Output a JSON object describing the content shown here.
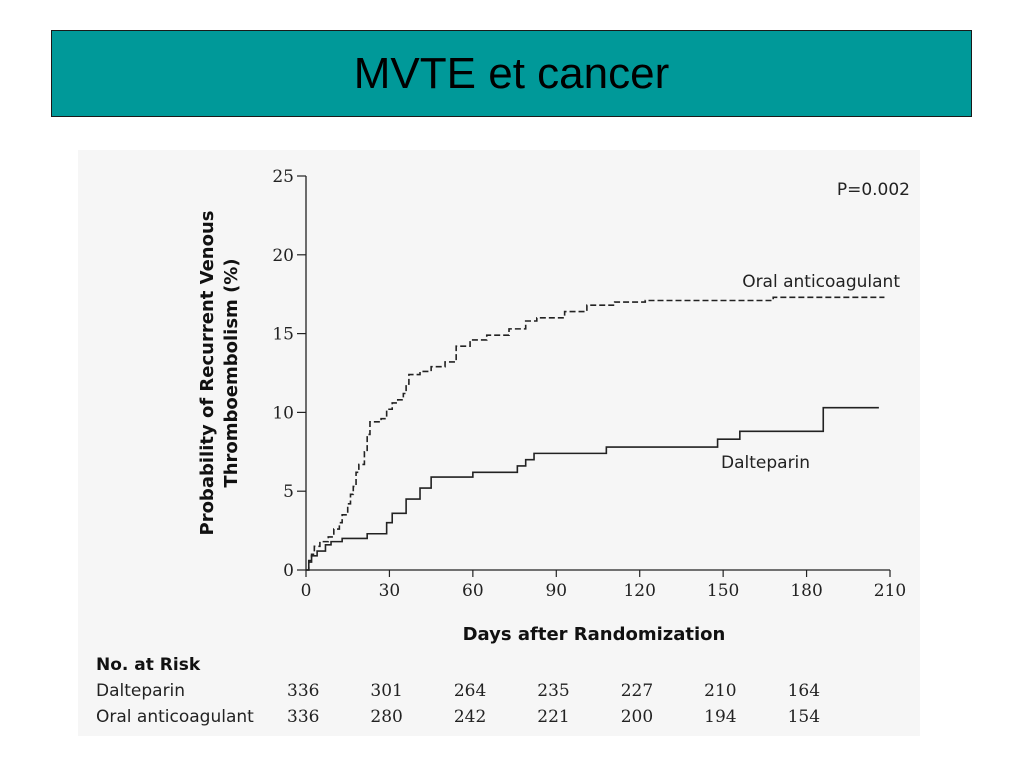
{
  "slide": {
    "title": "MVTE et cancer"
  },
  "chart_data": {
    "type": "line",
    "ylabel": "Probability of Recurrent Venous Thromboembolism (%)",
    "ylabel_lines": [
      "Probability of Recurrent Venous",
      "Thromboembolism (%)"
    ],
    "xlabel": "Days after Randomization",
    "xlim": [
      0,
      210
    ],
    "ylim": [
      0,
      25
    ],
    "xticks": [
      0,
      30,
      60,
      90,
      120,
      150,
      180,
      210
    ],
    "yticks": [
      0,
      5,
      10,
      15,
      20,
      25
    ],
    "annotation": "P=0.002",
    "grid": false,
    "series": [
      {
        "name": "Oral anticoagulant",
        "style": "dashed",
        "color": "#222222",
        "points": [
          [
            0,
            0
          ],
          [
            1,
            0.6
          ],
          [
            2,
            1.0
          ],
          [
            3,
            1.5
          ],
          [
            5,
            1.8
          ],
          [
            8,
            2.1
          ],
          [
            10,
            2.6
          ],
          [
            12,
            3.0
          ],
          [
            13,
            3.5
          ],
          [
            15,
            4.2
          ],
          [
            16,
            4.8
          ],
          [
            17,
            5.3
          ],
          [
            18,
            6.2
          ],
          [
            19,
            6.7
          ],
          [
            21,
            7.5
          ],
          [
            22,
            8.6
          ],
          [
            23,
            9.4
          ],
          [
            27,
            9.6
          ],
          [
            29,
            10.2
          ],
          [
            31,
            10.6
          ],
          [
            33,
            10.8
          ],
          [
            35,
            11.2
          ],
          [
            36,
            11.8
          ],
          [
            37,
            12.4
          ],
          [
            41,
            12.6
          ],
          [
            45,
            12.9
          ],
          [
            50,
            13.2
          ],
          [
            54,
            14.2
          ],
          [
            59,
            14.6
          ],
          [
            65,
            14.9
          ],
          [
            73,
            15.3
          ],
          [
            79,
            15.8
          ],
          [
            83,
            16.0
          ],
          [
            93,
            16.4
          ],
          [
            101,
            16.8
          ],
          [
            111,
            17.0
          ],
          [
            122,
            17.1
          ],
          [
            168,
            17.3
          ],
          [
            208,
            17.3
          ]
        ]
      },
      {
        "name": "Dalteparin",
        "style": "solid",
        "color": "#222222",
        "points": [
          [
            0,
            0
          ],
          [
            1,
            0.5
          ],
          [
            2,
            0.9
          ],
          [
            4,
            1.2
          ],
          [
            7,
            1.6
          ],
          [
            9,
            1.8
          ],
          [
            13,
            2.0
          ],
          [
            22,
            2.3
          ],
          [
            29,
            3.0
          ],
          [
            31,
            3.6
          ],
          [
            36,
            4.5
          ],
          [
            41,
            5.2
          ],
          [
            45,
            5.9
          ],
          [
            60,
            6.2
          ],
          [
            76,
            6.6
          ],
          [
            79,
            7.0
          ],
          [
            82,
            7.4
          ],
          [
            108,
            7.8
          ],
          [
            148,
            8.3
          ],
          [
            156,
            8.8
          ],
          [
            186,
            10.3
          ],
          [
            206,
            10.3
          ]
        ]
      }
    ],
    "at_risk": {
      "heading": "No. at Risk",
      "time_points": [
        0,
        30,
        60,
        90,
        120,
        150,
        180
      ],
      "rows": [
        {
          "label": "Dalteparin",
          "values": [
            "336",
            "301",
            "264",
            "235",
            "227",
            "210",
            "164"
          ]
        },
        {
          "label": "Oral anticoagulant",
          "values": [
            "336",
            "280",
            "242",
            "221",
            "200",
            "194",
            "154"
          ]
        }
      ]
    }
  }
}
